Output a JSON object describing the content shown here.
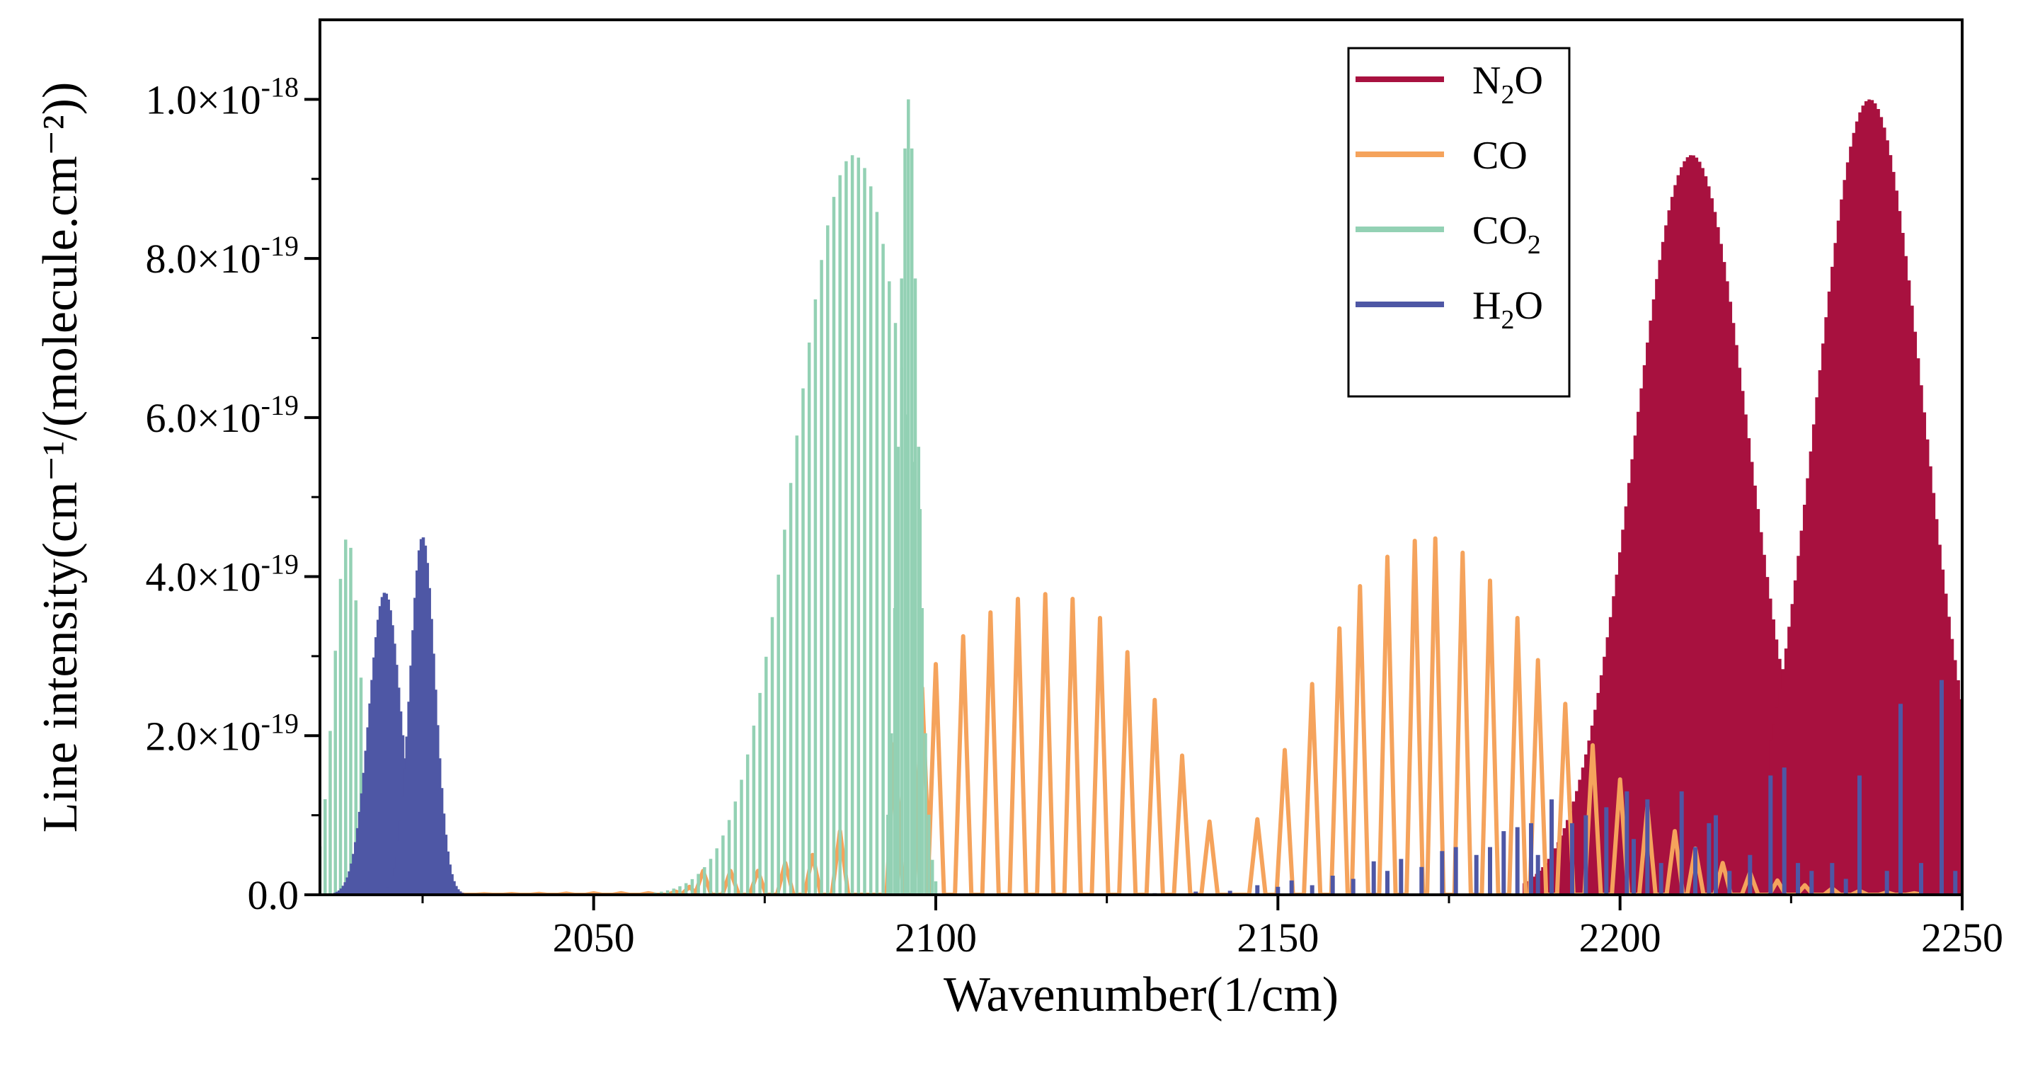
{
  "chart_data": {
    "type": "line",
    "title": "",
    "xlabel": "Wavenumber(1/cm)",
    "ylabel": "Line intensity(cm⁻¹/(molecule.cm⁻²))",
    "xlim": [
      2010,
      2250
    ],
    "ylim": [
      0,
      1.1e-18
    ],
    "x_ticks": [
      2050,
      2100,
      2150,
      2200,
      2250
    ],
    "x_tick_labels": [
      "2050",
      "2100",
      "2150",
      "2200",
      "2250"
    ],
    "y_ticks": [
      0,
      2e-19,
      4e-19,
      6e-19,
      8e-19,
      1e-18
    ],
    "y_tick_labels": [
      {
        "mantissa": "0.0",
        "exp": ""
      },
      {
        "mantissa": "2.0×10",
        "exp": "-19"
      },
      {
        "mantissa": "4.0×10",
        "exp": "-19"
      },
      {
        "mantissa": "6.0×10",
        "exp": "-19"
      },
      {
        "mantissa": "8.0×10",
        "exp": "-19"
      },
      {
        "mantissa": "1.0×10",
        "exp": "-18"
      }
    ],
    "legend_position": "top-right",
    "series": [
      {
        "name": "N₂O",
        "label_main": "N",
        "label_sub": "2",
        "label_tail": "O",
        "color": "#A8113F",
        "style": "bands",
        "bands": [
          {
            "center": 2210.5,
            "peak": 9.3e-19,
            "width": 8.5,
            "start": 2186,
            "end": 2224,
            "spacing": 0.45
          },
          {
            "center": 2236.5,
            "peak": 1e-18,
            "width": 8.0,
            "start": 2222,
            "end": 2250,
            "spacing": 0.45
          }
        ]
      },
      {
        "name": "CO",
        "label_main": "CO",
        "label_sub": "",
        "label_tail": "",
        "color": "#F5A35C",
        "style": "zigzag",
        "lines": [
          [
            2022,
            0.002
          ],
          [
            2026,
            0.004
          ],
          [
            2030,
            0.006
          ],
          [
            2034,
            0.007
          ],
          [
            2038,
            0.009
          ],
          [
            2042,
            0.012
          ],
          [
            2046,
            0.015
          ],
          [
            2050,
            0.018
          ],
          [
            2054,
            0.02
          ],
          [
            2058,
            0.02
          ],
          [
            2062,
            0.04
          ],
          [
            2064,
            0.1
          ],
          [
            2066,
            0.3
          ],
          [
            2070,
            0.3
          ],
          [
            2074,
            0.3
          ],
          [
            2078,
            0.4
          ],
          [
            2082,
            0.5
          ],
          [
            2086,
            0.8
          ],
          [
            2094,
            1.9
          ],
          [
            2098,
            2.6
          ],
          [
            2100,
            2.9
          ],
          [
            2104,
            3.25
          ],
          [
            2108,
            3.55
          ],
          [
            2112,
            3.72
          ],
          [
            2116,
            3.78
          ],
          [
            2120,
            3.72
          ],
          [
            2124,
            3.48
          ],
          [
            2128,
            3.05
          ],
          [
            2132,
            2.45
          ],
          [
            2136,
            1.75
          ],
          [
            2140,
            0.92
          ],
          [
            2147,
            0.95
          ],
          [
            2151,
            1.82
          ],
          [
            2155,
            2.65
          ],
          [
            2159,
            3.35
          ],
          [
            2162,
            3.88
          ],
          [
            2166,
            4.25
          ],
          [
            2170,
            4.45
          ],
          [
            2173,
            4.48
          ],
          [
            2177,
            4.3
          ],
          [
            2181,
            3.95
          ],
          [
            2185,
            3.48
          ],
          [
            2188,
            2.95
          ],
          [
            2192,
            2.4
          ],
          [
            2196,
            1.88
          ],
          [
            2200,
            1.45
          ],
          [
            2204,
            1.1
          ],
          [
            2208,
            0.8
          ],
          [
            2211,
            0.58
          ],
          [
            2215,
            0.4
          ],
          [
            2219,
            0.28
          ],
          [
            2223,
            0.18
          ],
          [
            2227,
            0.12
          ],
          [
            2231,
            0.08
          ],
          [
            2235,
            0.05
          ],
          [
            2239,
            0.03
          ],
          [
            2243,
            0.02
          ]
        ]
      },
      {
        "name": "CO₂",
        "label_main": "CO",
        "label_sub": "2",
        "label_tail": "",
        "color": "#93D1B4",
        "style": "bands",
        "bands": [
          {
            "center": 2014,
            "peak": 4.5e-19,
            "width": 2.0,
            "start": 2010,
            "end": 2020,
            "spacing": 0.75
          },
          {
            "center": 2088,
            "peak": 9.3e-19,
            "width": 8.5,
            "start": 2050,
            "end": 2098.5,
            "spacing": 0.9
          },
          {
            "center": 2096,
            "peak": 1e-18,
            "width": 1.4,
            "start": 2093,
            "end": 2100,
            "spacing": 0.5
          }
        ]
      },
      {
        "name": "H₂O",
        "label_main": "H",
        "label_sub": "2",
        "label_tail": "O",
        "color": "#4E57A5",
        "style": "bands",
        "bands": [
          {
            "center": 2019.5,
            "peak": 3.8e-19,
            "width": 2.3,
            "start": 2011,
            "end": 2030,
            "spacing": 0.3
          },
          {
            "center": 2025,
            "peak": 4.5e-19,
            "width": 1.8,
            "start": 2020,
            "end": 2031,
            "spacing": 0.3
          }
        ],
        "sparse_lines": [
          [
            2120,
            0.01
          ],
          [
            2126,
            0.01
          ],
          [
            2132,
            0.02
          ],
          [
            2138,
            0.04
          ],
          [
            2143,
            0.05
          ],
          [
            2147,
            0.12
          ],
          [
            2150,
            0.1
          ],
          [
            2152,
            0.18
          ],
          [
            2155,
            0.12
          ],
          [
            2158,
            0.24
          ],
          [
            2161,
            0.2
          ],
          [
            2164,
            0.42
          ],
          [
            2166,
            0.3
          ],
          [
            2168,
            0.45
          ],
          [
            2171,
            0.35
          ],
          [
            2174,
            0.55
          ],
          [
            2176,
            0.6
          ],
          [
            2179,
            0.5
          ],
          [
            2181,
            0.6
          ],
          [
            2183,
            0.8
          ],
          [
            2185,
            0.85
          ],
          [
            2187,
            0.9
          ],
          [
            2188,
            0.5
          ],
          [
            2190,
            1.2
          ],
          [
            2193,
            0.9
          ],
          [
            2195,
            1.0
          ],
          [
            2198,
            1.1
          ],
          [
            2201,
            1.3
          ],
          [
            2202,
            0.7
          ],
          [
            2204,
            1.2
          ],
          [
            2206,
            0.4
          ],
          [
            2209,
            1.3
          ],
          [
            2211,
            0.6
          ],
          [
            2213,
            0.9
          ],
          [
            2214,
            1.0
          ],
          [
            2216,
            0.3
          ],
          [
            2219,
            0.5
          ],
          [
            2222,
            1.5
          ],
          [
            2224,
            1.6
          ],
          [
            2226,
            0.4
          ],
          [
            2228,
            0.3
          ],
          [
            2231,
            0.4
          ],
          [
            2233,
            0.2
          ],
          [
            2235,
            1.5
          ],
          [
            2239,
            0.3
          ],
          [
            2241,
            2.4
          ],
          [
            2244,
            0.4
          ],
          [
            2247,
            2.7
          ],
          [
            2249,
            0.3
          ]
        ]
      }
    ]
  }
}
